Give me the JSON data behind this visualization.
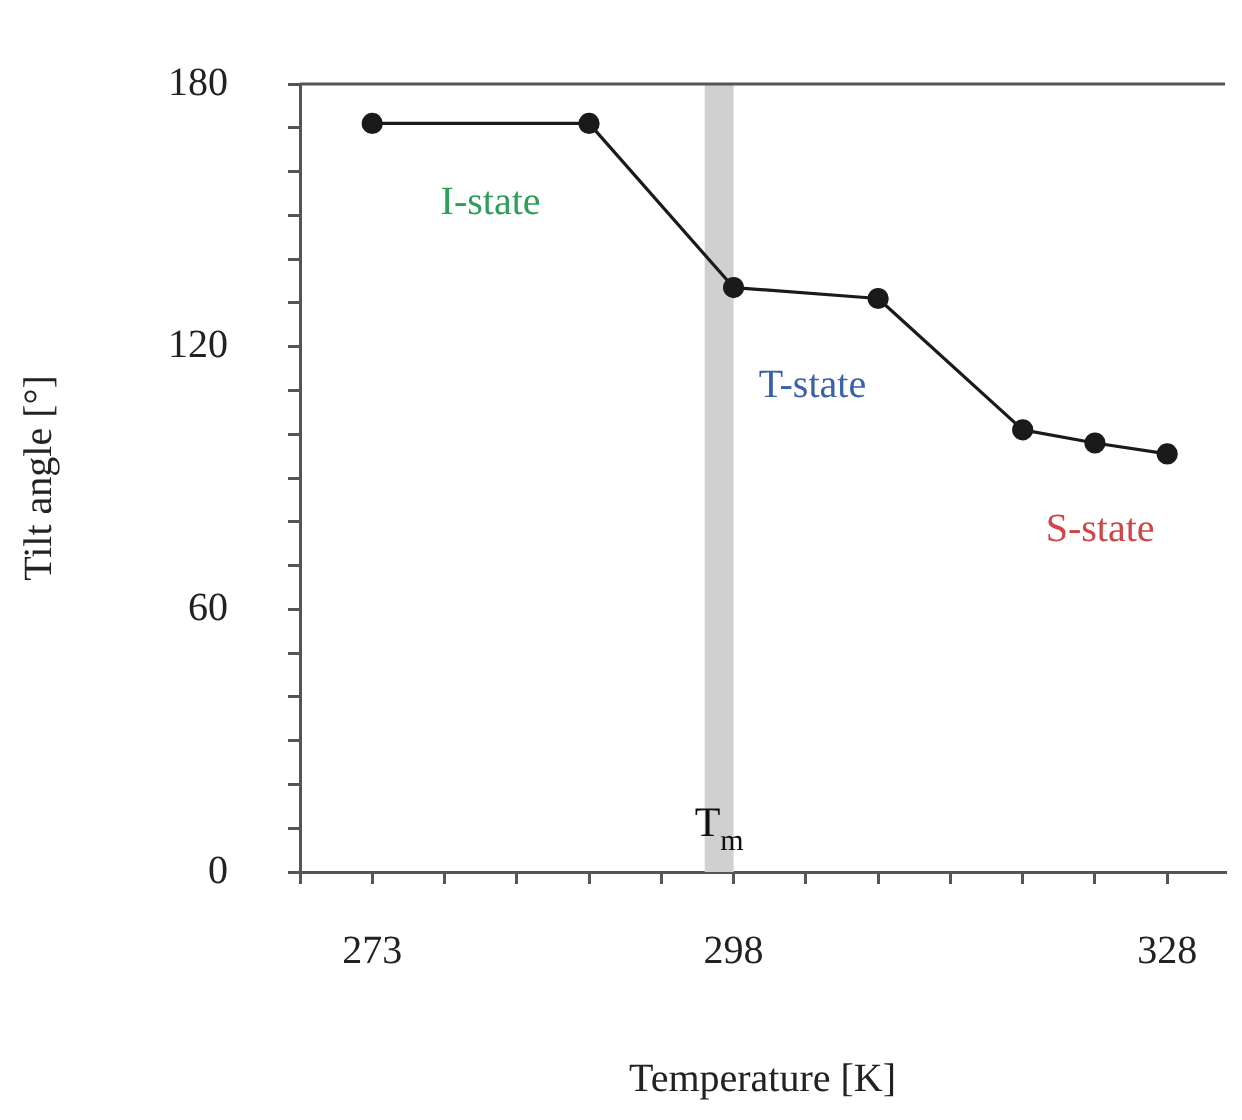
{
  "chart_data": {
    "type": "line",
    "xlabel": "Temperature [K]",
    "ylabel": "Tilt angle [°]",
    "x": [
      273,
      288,
      298,
      308,
      318,
      323,
      328
    ],
    "series": [
      {
        "color": "#1a1a1a",
        "values": [
          171,
          171,
          133.5,
          131,
          101,
          98,
          95.5
        ]
      }
    ],
    "xlim": [
      268,
      332
    ],
    "xticks": [
      {
        "value": 268,
        "label": null
      },
      273,
      {
        "value": 278,
        "label": null
      },
      {
        "value": 283,
        "label": null
      },
      {
        "value": 288,
        "label": null
      },
      {
        "value": 293,
        "label": null
      },
      298,
      {
        "value": 303,
        "label": null
      },
      {
        "value": 308,
        "label": null
      },
      {
        "value": 313,
        "label": null
      },
      {
        "value": 318,
        "label": null
      },
      {
        "value": 323,
        "label": null
      },
      328
    ],
    "ylim": [
      0,
      180
    ],
    "yticks": [
      0,
      {
        "value": 10,
        "label": null
      },
      {
        "value": 20,
        "label": null
      },
      {
        "value": 30,
        "label": null
      },
      {
        "value": 40,
        "label": null
      },
      {
        "value": 50,
        "label": null
      },
      60,
      {
        "value": 70,
        "label": null
      },
      {
        "value": 80,
        "label": null
      },
      {
        "value": 90,
        "label": null
      },
      {
        "value": 100,
        "label": null
      },
      {
        "value": 110,
        "label": null
      },
      120,
      {
        "value": 130,
        "label": null
      },
      {
        "value": 140,
        "label": null
      },
      {
        "value": 150,
        "label": null
      },
      {
        "value": 160,
        "label": null
      },
      {
        "value": 170,
        "label": null
      },
      180
    ],
    "bands": [
      {
        "axis": "x",
        "from": 296,
        "to": 298,
        "label": "T$_{m}$",
        "color": "#d0d0d0"
      }
    ],
    "annotations": [
      "I-state",
      "T-state",
      "S-state"
    ],
    "grid": false,
    "legend": false,
    "marker": "circle",
    "line_style": "solid"
  }
}
